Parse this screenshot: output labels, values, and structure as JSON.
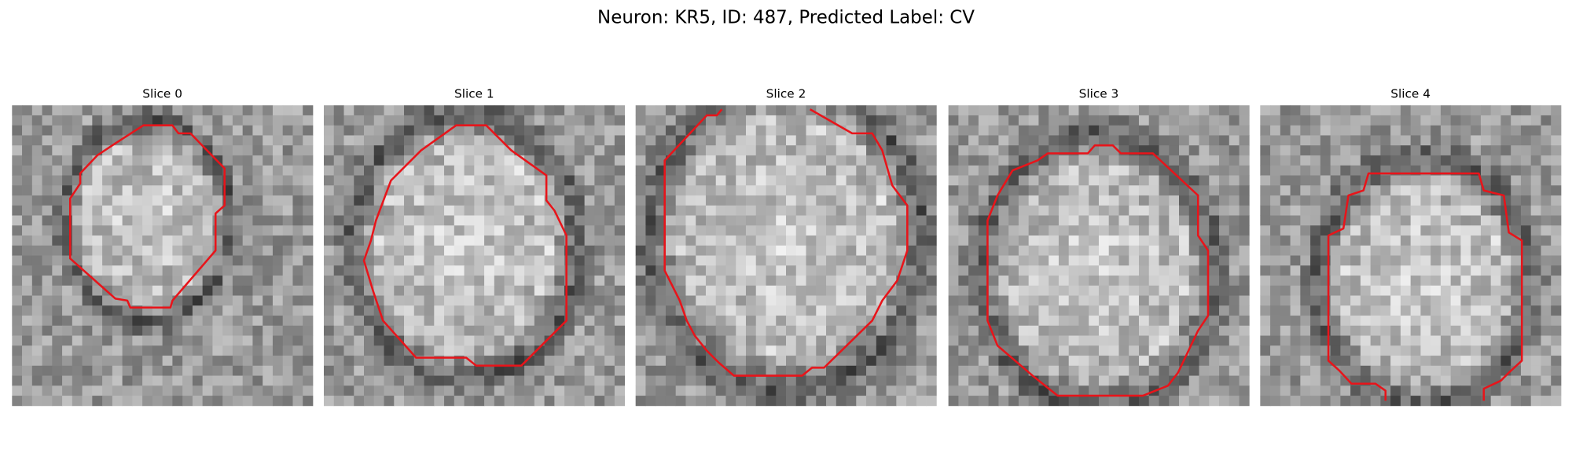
{
  "title": "Neuron: KR5, ID: 487, Predicted Label: CV",
  "panels": [
    {
      "title": "Slice 0"
    },
    {
      "title": "Slice 1"
    },
    {
      "title": "Slice 2"
    },
    {
      "title": "Slice 3"
    },
    {
      "title": "Slice 4"
    }
  ]
}
